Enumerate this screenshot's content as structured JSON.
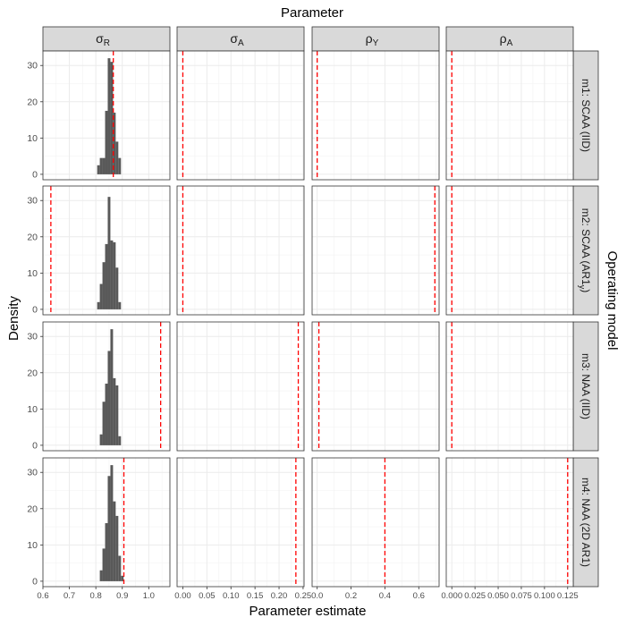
{
  "chart_data": {
    "type": "histogram-facet-grid",
    "title": "Parameter",
    "xlabel": "Parameter estimate",
    "ylabel": "Density",
    "row_title": "Operating model",
    "columns": [
      {
        "key": "sigmaR",
        "sym": "σ",
        "sub": "R",
        "xlim": [
          0.6,
          1.08
        ],
        "ticks": [
          0.6,
          0.7,
          0.8,
          0.9,
          1.0
        ],
        "tick_labels": [
          "0.6",
          "0.7",
          "0.8",
          "0.9",
          "1.0"
        ]
      },
      {
        "key": "sigmaA",
        "sym": "σ",
        "sub": "A",
        "xlim": [
          -0.012,
          0.252
        ],
        "ticks": [
          0.0,
          0.05,
          0.1,
          0.15,
          0.2,
          0.25
        ],
        "tick_labels": [
          "0.00",
          "0.05",
          "0.10",
          "0.15",
          "0.20",
          "0.25"
        ]
      },
      {
        "key": "rhoY",
        "sym": "ρ",
        "sub": "Y",
        "xlim": [
          -0.03,
          0.72
        ],
        "ticks": [
          0.0,
          0.2,
          0.4,
          0.6
        ],
        "tick_labels": [
          "0.0",
          "0.2",
          "0.4",
          "0.6"
        ]
      },
      {
        "key": "rhoA",
        "sym": "ρ",
        "sub": "A",
        "xlim": [
          -0.006,
          0.131
        ],
        "ticks": [
          0.0,
          0.025,
          0.05,
          0.075,
          0.1,
          0.125
        ],
        "tick_labels": [
          "0.000",
          "0.025",
          "0.050",
          "0.075",
          "0.100",
          "0.125"
        ]
      }
    ],
    "rows": [
      {
        "label": "m1: SCAA (IID)"
      },
      {
        "label": "m2: SCAA (AR1",
        "sub": "y",
        "label_end": ")"
      },
      {
        "label": "m3: NAA (IID)"
      },
      {
        "label": "m4: NAA (2D AR1)"
      }
    ],
    "y_ticks": [
      0,
      10,
      20,
      30
    ],
    "ylim": [
      -1.5,
      34
    ],
    "bin_width": 0.01,
    "histograms": [
      {
        "row": 0,
        "col": 0,
        "bins": [
          {
            "x": 0.81,
            "y": 2.5
          },
          {
            "x": 0.82,
            "y": 4.5
          },
          {
            "x": 0.83,
            "y": 4.5
          },
          {
            "x": 0.84,
            "y": 17.5
          },
          {
            "x": 0.85,
            "y": 32
          },
          {
            "x": 0.86,
            "y": 31
          },
          {
            "x": 0.87,
            "y": 17
          },
          {
            "x": 0.88,
            "y": 9
          },
          {
            "x": 0.89,
            "y": 4.5
          }
        ]
      },
      {
        "row": 1,
        "col": 0,
        "bins": [
          {
            "x": 0.81,
            "y": 2
          },
          {
            "x": 0.82,
            "y": 7
          },
          {
            "x": 0.83,
            "y": 13
          },
          {
            "x": 0.84,
            "y": 18
          },
          {
            "x": 0.85,
            "y": 31
          },
          {
            "x": 0.86,
            "y": 19
          },
          {
            "x": 0.87,
            "y": 18.5
          },
          {
            "x": 0.88,
            "y": 11.5
          },
          {
            "x": 0.89,
            "y": 2
          }
        ]
      },
      {
        "row": 2,
        "col": 0,
        "bins": [
          {
            "x": 0.82,
            "y": 3
          },
          {
            "x": 0.83,
            "y": 12
          },
          {
            "x": 0.84,
            "y": 17
          },
          {
            "x": 0.85,
            "y": 26
          },
          {
            "x": 0.86,
            "y": 32
          },
          {
            "x": 0.87,
            "y": 18.5
          },
          {
            "x": 0.88,
            "y": 16.5
          },
          {
            "x": 0.89,
            "y": 2.5
          }
        ]
      },
      {
        "row": 3,
        "col": 0,
        "bins": [
          {
            "x": 0.82,
            "y": 3
          },
          {
            "x": 0.83,
            "y": 9
          },
          {
            "x": 0.84,
            "y": 16
          },
          {
            "x": 0.85,
            "y": 29
          },
          {
            "x": 0.86,
            "y": 32
          },
          {
            "x": 0.87,
            "y": 22
          },
          {
            "x": 0.88,
            "y": 18
          },
          {
            "x": 0.89,
            "y": 7
          },
          {
            "x": 0.9,
            "y": 1.5
          }
        ]
      }
    ],
    "true_values": [
      [
        0.866,
        0.0,
        0.0,
        0.0
      ],
      [
        0.63,
        0.0,
        0.695,
        0.0
      ],
      [
        1.045,
        0.24,
        0.01,
        0.0
      ],
      [
        0.906,
        0.235,
        0.4,
        0.125
      ]
    ],
    "true_value_color": "#ff0000",
    "bar_color": "#595959"
  }
}
